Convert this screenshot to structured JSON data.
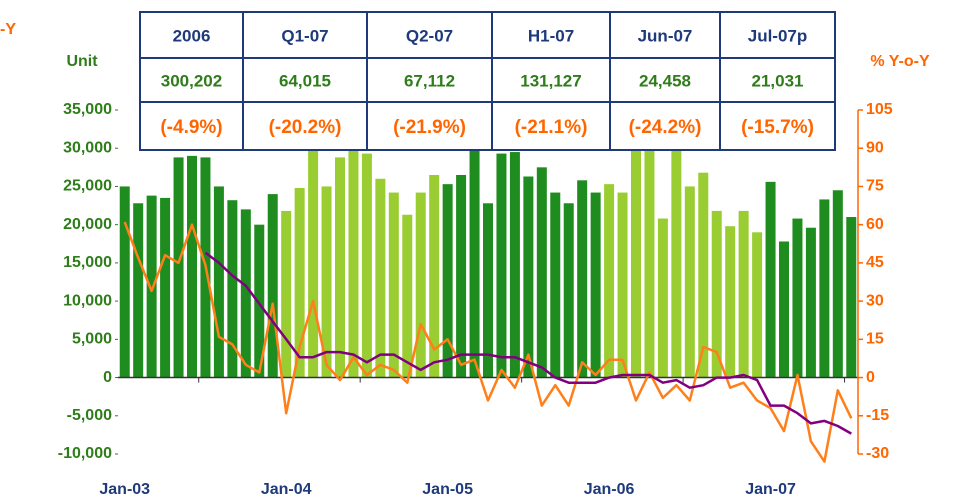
{
  "chart_data": {
    "type": "bar_line",
    "left_note": "-Y",
    "y_label": "Unit",
    "y2_label": "% Y-o-Y",
    "categories": [
      "Jan-03",
      null,
      null,
      null,
      null,
      null,
      null,
      null,
      null,
      null,
      null,
      null,
      "Jan-04",
      null,
      null,
      null,
      null,
      null,
      null,
      null,
      null,
      null,
      null,
      null,
      "Jan-05",
      null,
      null,
      null,
      null,
      null,
      null,
      null,
      null,
      null,
      null,
      null,
      "Jan-06",
      null,
      null,
      null,
      null,
      null,
      null,
      null,
      null,
      null,
      null,
      null,
      "Jan-07",
      null,
      null,
      null,
      null,
      null,
      null
    ],
    "bars": {
      "values": [
        25000,
        22800,
        23800,
        23500,
        28800,
        29000,
        28800,
        25000,
        23200,
        22000,
        20000,
        24000,
        21800,
        24800,
        30800,
        25000,
        28800,
        31000,
        29300,
        26000,
        24200,
        21300,
        24200,
        26500,
        25300,
        26500,
        32000,
        22800,
        29300,
        29500,
        26300,
        27500,
        24200,
        22800,
        25800,
        24200,
        25300,
        24200,
        30800,
        32500,
        20800,
        32500,
        25000,
        26800,
        21800,
        19800,
        21800,
        19000,
        25600,
        17800,
        20800,
        19600,
        23300,
        24500,
        21000
      ],
      "colors": [
        "#1e8c1e",
        "#1e8c1e",
        "#1e8c1e",
        "#1e8c1e",
        "#1e8c1e",
        "#1e8c1e",
        "#1e8c1e",
        "#1e8c1e",
        "#1e8c1e",
        "#1e8c1e",
        "#1e8c1e",
        "#1e8c1e",
        "#9acd32",
        "#9acd32",
        "#9acd32",
        "#9acd32",
        "#9acd32",
        "#9acd32",
        "#9acd32",
        "#9acd32",
        "#9acd32",
        "#9acd32",
        "#9acd32",
        "#9acd32",
        "#1e8c1e",
        "#1e8c1e",
        "#1e8c1e",
        "#1e8c1e",
        "#1e8c1e",
        "#1e8c1e",
        "#1e8c1e",
        "#1e8c1e",
        "#1e8c1e",
        "#1e8c1e",
        "#1e8c1e",
        "#1e8c1e",
        "#9acd32",
        "#9acd32",
        "#9acd32",
        "#9acd32",
        "#9acd32",
        "#9acd32",
        "#9acd32",
        "#9acd32",
        "#9acd32",
        "#9acd32",
        "#9acd32",
        "#9acd32",
        "#1e8c1e",
        "#1e8c1e",
        "#1e8c1e",
        "#1e8c1e",
        "#1e8c1e",
        "#1e8c1e",
        "#1e8c1e"
      ]
    },
    "series": [
      {
        "color": "#ff7f1a",
        "axis": "y2",
        "values": [
          61,
          47,
          34,
          48,
          45,
          60,
          44,
          16,
          13,
          5,
          2,
          29,
          -14,
          12,
          30,
          5,
          -1,
          8,
          1,
          5,
          3,
          -2,
          21,
          11,
          15,
          5,
          7,
          -9,
          3,
          -4,
          9,
          -11,
          -3,
          -11,
          6,
          1,
          7,
          7,
          -9,
          2,
          -8,
          -3,
          -9,
          12,
          10,
          -4,
          -2,
          -9,
          -12,
          -21,
          1,
          -25,
          -33,
          -5,
          -16
        ]
      },
      {
        "color": "#800080",
        "axis": "y2",
        "values": [
          null,
          null,
          null,
          null,
          null,
          null,
          49,
          45,
          40,
          36,
          29,
          22,
          15,
          8,
          8,
          10,
          10,
          9,
          6,
          9,
          9,
          6,
          3,
          6,
          7,
          9,
          9,
          9,
          8,
          8,
          6,
          4,
          0,
          -2,
          -2,
          -2,
          0,
          1,
          1,
          1,
          -2,
          -1,
          -4,
          -3,
          0,
          0,
          1,
          -1,
          -11,
          -11,
          -14,
          -18,
          -17,
          -19,
          -22
        ]
      }
    ],
    "ylim": [
      -10000,
      35000
    ],
    "yticks": [
      {
        "value": -10000,
        "label": "-10,000"
      },
      {
        "value": -5000,
        "label": "-5,000"
      },
      0,
      {
        "value": 5000,
        "label": "5,000"
      },
      {
        "value": 10000,
        "label": "10,000"
      },
      {
        "value": 15000,
        "label": "15,000"
      },
      {
        "value": 20000,
        "label": "20,000"
      },
      {
        "value": 25000,
        "label": "25,000"
      },
      {
        "value": 30000,
        "label": "30,000"
      },
      {
        "value": 35000,
        "label": "35,000"
      }
    ],
    "y2lim": [
      -30,
      105
    ],
    "y2ticks": [
      -30,
      -15,
      0,
      15,
      30,
      45,
      60,
      75,
      90,
      105
    ],
    "table": {
      "headers": [
        "2006",
        "Q1-07",
        "Q2-07",
        "H1-07",
        "Jun-07",
        "Jul-07p"
      ],
      "values": [
        "300,202",
        "64,015",
        "67,112",
        "131,127",
        "24,458",
        "21,031"
      ],
      "changes": [
        "(-4.9%)",
        "(-20.2%)",
        "(-21.9%)",
        "(-21.1%)",
        "(-24.2%)",
        "(-15.7%)"
      ]
    }
  }
}
